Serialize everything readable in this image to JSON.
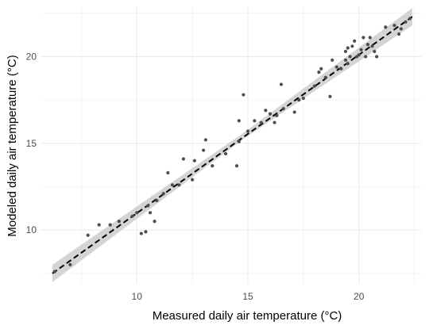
{
  "chart_data": {
    "type": "scatter",
    "title": "",
    "xlabel": "Measured daily air temperature (°C)",
    "ylabel": "Modeled daily air temperature (°C)",
    "xlim": [
      5.7,
      22.8
    ],
    "ylim": [
      6.9,
      22.9
    ],
    "x_ticks": [
      10,
      15,
      20
    ],
    "y_ticks": [
      10,
      15,
      20
    ],
    "x_tick_labels": [
      "10",
      "15",
      "20"
    ],
    "y_tick_labels": [
      "10",
      "15",
      "20"
    ],
    "grid": true,
    "legend": "none",
    "points": [
      {
        "x": 6.3,
        "y": 7.6
      },
      {
        "x": 7.0,
        "y": 8.0
      },
      {
        "x": 7.8,
        "y": 9.7
      },
      {
        "x": 8.3,
        "y": 10.3
      },
      {
        "x": 8.8,
        "y": 10.3
      },
      {
        "x": 9.2,
        "y": 10.5
      },
      {
        "x": 9.8,
        "y": 10.8
      },
      {
        "x": 10.0,
        "y": 11.0
      },
      {
        "x": 10.2,
        "y": 9.8
      },
      {
        "x": 10.4,
        "y": 9.9
      },
      {
        "x": 10.5,
        "y": 11.4
      },
      {
        "x": 10.6,
        "y": 11.0
      },
      {
        "x": 10.8,
        "y": 10.5
      },
      {
        "x": 10.9,
        "y": 11.7
      },
      {
        "x": 11.2,
        "y": 12.1
      },
      {
        "x": 11.4,
        "y": 13.3
      },
      {
        "x": 11.6,
        "y": 12.6
      },
      {
        "x": 11.9,
        "y": 12.6
      },
      {
        "x": 12.1,
        "y": 14.1
      },
      {
        "x": 12.5,
        "y": 12.9
      },
      {
        "x": 12.6,
        "y": 14.0
      },
      {
        "x": 13.0,
        "y": 14.6
      },
      {
        "x": 13.1,
        "y": 15.2
      },
      {
        "x": 13.4,
        "y": 13.7
      },
      {
        "x": 14.0,
        "y": 14.4
      },
      {
        "x": 14.5,
        "y": 13.7
      },
      {
        "x": 14.6,
        "y": 15.1
      },
      {
        "x": 14.6,
        "y": 16.3
      },
      {
        "x": 14.8,
        "y": 17.8
      },
      {
        "x": 15.0,
        "y": 15.7
      },
      {
        "x": 15.3,
        "y": 16.3
      },
      {
        "x": 15.6,
        "y": 16.2
      },
      {
        "x": 15.8,
        "y": 16.9
      },
      {
        "x": 16.0,
        "y": 16.7
      },
      {
        "x": 16.2,
        "y": 16.2
      },
      {
        "x": 16.3,
        "y": 16.6
      },
      {
        "x": 16.5,
        "y": 18.4
      },
      {
        "x": 16.6,
        "y": 17.0
      },
      {
        "x": 17.1,
        "y": 16.8
      },
      {
        "x": 17.3,
        "y": 17.5
      },
      {
        "x": 17.5,
        "y": 17.6
      },
      {
        "x": 18.0,
        "y": 18.3
      },
      {
        "x": 18.2,
        "y": 19.1
      },
      {
        "x": 18.3,
        "y": 19.3
      },
      {
        "x": 18.5,
        "y": 18.8
      },
      {
        "x": 18.7,
        "y": 17.7
      },
      {
        "x": 18.8,
        "y": 19.8
      },
      {
        "x": 19.0,
        "y": 19.4
      },
      {
        "x": 19.2,
        "y": 19.3
      },
      {
        "x": 19.4,
        "y": 19.8
      },
      {
        "x": 19.4,
        "y": 20.3
      },
      {
        "x": 19.5,
        "y": 19.6
      },
      {
        "x": 19.5,
        "y": 20.5
      },
      {
        "x": 19.6,
        "y": 20.0
      },
      {
        "x": 19.7,
        "y": 20.6
      },
      {
        "x": 19.8,
        "y": 20.9
      },
      {
        "x": 19.9,
        "y": 20.0
      },
      {
        "x": 20.0,
        "y": 20.1
      },
      {
        "x": 20.1,
        "y": 20.4
      },
      {
        "x": 20.2,
        "y": 21.1
      },
      {
        "x": 20.3,
        "y": 20.0
      },
      {
        "x": 20.4,
        "y": 20.7
      },
      {
        "x": 20.5,
        "y": 21.1
      },
      {
        "x": 20.6,
        "y": 20.6
      },
      {
        "x": 20.7,
        "y": 20.3
      },
      {
        "x": 20.8,
        "y": 20.0
      },
      {
        "x": 21.2,
        "y": 21.7
      },
      {
        "x": 21.6,
        "y": 21.8
      },
      {
        "x": 21.8,
        "y": 21.3
      },
      {
        "x": 21.9,
        "y": 21.6
      },
      {
        "x": 22.1,
        "y": 22.0
      },
      {
        "x": 22.3,
        "y": 22.2
      }
    ],
    "fit_line": {
      "x": [
        6.2,
        22.4
      ],
      "y": [
        7.5,
        22.3
      ],
      "style": "dashed"
    },
    "confidence_band": {
      "x": [
        6.2,
        14.8,
        22.4
      ],
      "lower": [
        7.0,
        15.25,
        21.8
      ],
      "upper": [
        8.0,
        15.6,
        22.8
      ]
    },
    "colors": {
      "points": "#4d4d4d",
      "fit_line": "#000000",
      "band": "#cccccc",
      "grid": "#ebebeb"
    }
  }
}
